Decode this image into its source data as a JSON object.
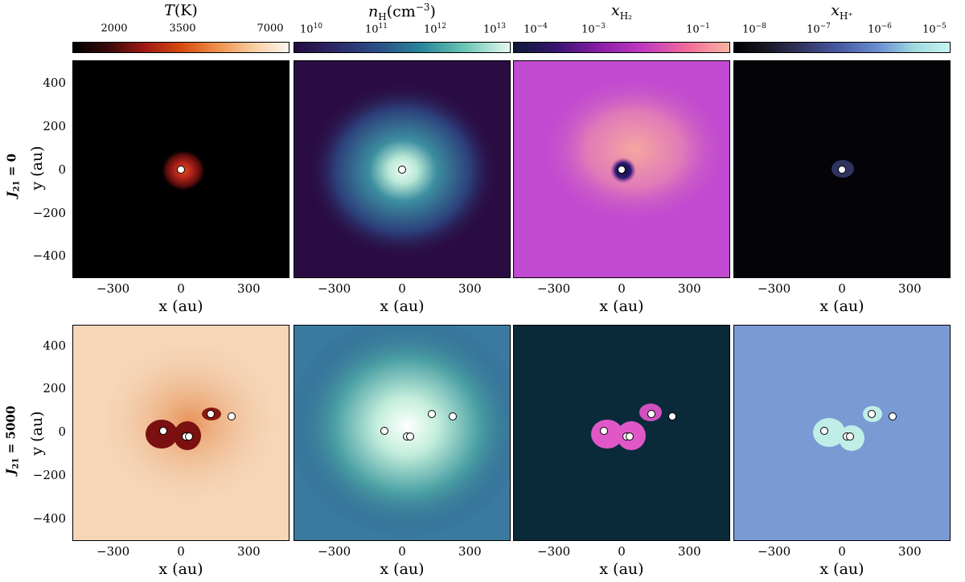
{
  "colorbars": [
    {
      "id": "T",
      "title_main": "T",
      "title_unit": "(K)",
      "ticks": [
        "2000",
        "3500",
        "7000"
      ],
      "gradient": [
        "#000000",
        "#3a0a0a",
        "#a01a14",
        "#d64a10",
        "#ef8f4a",
        "#f8cca0",
        "#fdf6ee"
      ]
    },
    {
      "id": "nH",
      "title_main": "n",
      "title_sub": "H",
      "title_unit": "(cm",
      "title_exp": "−3",
      "title_close": ")",
      "ticks": [
        {
          "b": "10",
          "e": "10"
        },
        {
          "b": "10",
          "e": "11"
        },
        {
          "b": "10",
          "e": "12"
        },
        {
          "b": "10",
          "e": "13"
        }
      ],
      "gradient": [
        "#240a40",
        "#2c2a6a",
        "#2a5288",
        "#2a8a9a",
        "#6fc8b8",
        "#e6f8f2"
      ]
    },
    {
      "id": "xH2",
      "title_main": "x",
      "title_sub": "H₂",
      "ticks": [
        {
          "b": "10",
          "e": "−4"
        },
        {
          "b": "10",
          "e": "−3"
        },
        {
          "b": "10",
          "e": "−1"
        }
      ],
      "gradient": [
        "#0a1a38",
        "#3a1470",
        "#8a1ea8",
        "#c03ac0",
        "#f06a9a",
        "#f8b4a0"
      ]
    },
    {
      "id": "xHp",
      "title_main": "x",
      "title_sub": "H⁺",
      "ticks": [
        {
          "b": "10",
          "e": "−8"
        },
        {
          "b": "10",
          "e": "−7"
        },
        {
          "b": "10",
          "e": "−6"
        },
        {
          "b": "10",
          "e": "−5"
        }
      ],
      "gradient": [
        "#000000",
        "#1a1a2a",
        "#353a6a",
        "#4a5ea8",
        "#6a8ed0",
        "#9fd8e0",
        "#c8f4f0"
      ]
    }
  ],
  "rows": [
    {
      "label_main": "J",
      "label_sub": "21",
      "label_eq": " = 0"
    },
    {
      "label_main": "J",
      "label_sub": "21",
      "label_eq": " = 5000"
    }
  ],
  "axes": {
    "xlabel": "x (au)",
    "ylabel": "y (au)",
    "yticks": [
      "400",
      "200",
      "0",
      "−200",
      "−400"
    ],
    "xticks": [
      "−300",
      "0",
      "300"
    ]
  },
  "sinks_top": [
    [
      0,
      0
    ]
  ],
  "sinks_bottom": [
    [
      -80,
      10
    ],
    [
      20,
      -18
    ],
    [
      35,
      -18
    ],
    [
      130,
      88
    ],
    [
      225,
      78
    ]
  ]
}
